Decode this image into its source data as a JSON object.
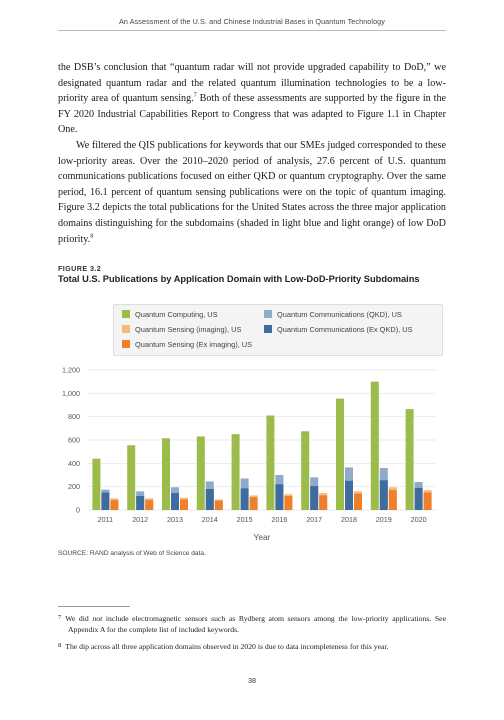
{
  "running_head": "An Assessment of the U.S. and Chinese Industrial Bases in Quantum Technology",
  "body": {
    "paragraph1": {
      "before": "the DSB’s conclusion that “quantum radar will not provide upgraded capability to DoD,” we designated quantum radar and the related quantum illumination technologies to be a low-priority area of quantum sensing.",
      "fn": "7",
      "after": " Both of these assessments are supported by the figure in the FY 2020 Industrial Capabilities Report to Congress that was adapted to Figure 1.1 in Chapter One."
    },
    "paragraph2": {
      "before": "We filtered the QIS publications for keywords that our SMEs judged corresponded to these low-priority areas. Over the 2010–2020 period of analysis, 27.6 percent of U.S. quantum communications publications focused on either QKD or quantum cryptography. Over the same period, 16.1 percent of quantum sensing publications were on the topic of quantum imaging. Figure 3.2 depicts the total publications for the United States across the three major application domains distinguishing for the subdomains (shaded in light blue and light orange) of low DoD priority.",
      "fn": "8"
    }
  },
  "figure": {
    "label": "FIGURE 3.2",
    "title": "Total U.S. Publications by Application Domain with Low-DoD-Priority Subdomains",
    "source": "SOURCE: RAND analysis of Web of Science data."
  },
  "colors": {
    "computing": "#9bbb4b",
    "comm_qkd": "#8faacb",
    "comm_ex_qkd": "#3e6c9e",
    "sensing_imaging": "#f4b97c",
    "sensing_ex_imaging": "#f07f2c",
    "grid": "#e3e3e3",
    "axis_text": "#555555"
  },
  "chart_data": {
    "type": "bar",
    "categories": [
      "2011",
      "2012",
      "2013",
      "2014",
      "2015",
      "2016",
      "2017",
      "2018",
      "2019",
      "2020"
    ],
    "xlabel": "Year",
    "ylabel": "",
    "ylim": [
      0,
      1200
    ],
    "yticks": [
      0,
      200,
      400,
      600,
      800,
      1000,
      1200
    ],
    "ytick_labels": [
      "0",
      "200",
      "400",
      "600",
      "800",
      "1,000",
      "1,200"
    ],
    "grid": true,
    "legend_position": "top",
    "series": [
      {
        "name": "Quantum Computing, US",
        "group": "computing",
        "values": [
          440,
          555,
          615,
          630,
          650,
          810,
          675,
          955,
          1100,
          865
        ]
      },
      {
        "name": "Quantum Communications (QKD), US",
        "group": "communications",
        "stack": "top",
        "values": [
          175,
          160,
          195,
          245,
          270,
          300,
          280,
          365,
          360,
          240
        ]
      },
      {
        "name": "Quantum Communications (Ex QKD), US",
        "group": "communications",
        "stack": "bottom",
        "values": [
          150,
          120,
          145,
          180,
          185,
          220,
          205,
          250,
          255,
          190
        ]
      },
      {
        "name": "Quantum Sensing (imaging), US",
        "group": "sensing",
        "stack": "top",
        "values": [
          100,
          100,
          105,
          90,
          125,
          135,
          145,
          160,
          195,
          170
        ]
      },
      {
        "name": "Quantum Sensing (Ex imaging), US",
        "group": "sensing",
        "stack": "bottom",
        "values": [
          85,
          85,
          90,
          80,
          110,
          120,
          125,
          140,
          170,
          150
        ]
      }
    ]
  },
  "footnotes": [
    {
      "num": "7",
      "before": "We did ",
      "em": "not",
      "after": " include electromagnetic sensors such as Rydberg atom sensors among the low-priority applications. See Appendix A for the complete list of included keywords."
    },
    {
      "num": "8",
      "before": "The dip across all three application domains observed in 2020 is due to data incompleteness for this year.",
      "em": "",
      "after": ""
    }
  ],
  "page_number": "38"
}
